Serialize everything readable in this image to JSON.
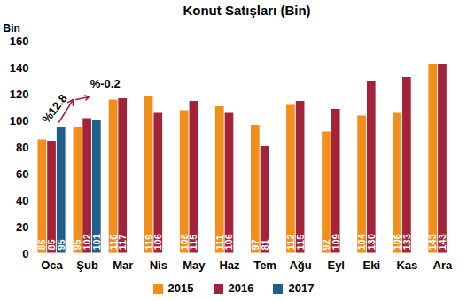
{
  "chart_data": {
    "type": "bar",
    "title": "Konut Satışları (Bin)",
    "y_label": "Bin",
    "categories": [
      "Oca",
      "Şub",
      "Mar",
      "Nis",
      "May",
      "Haz",
      "Tem",
      "Ağu",
      "Eyl",
      "Eki",
      "Kas",
      "Ara"
    ],
    "series": [
      {
        "name": "2015",
        "color": "#f28e1c",
        "values": [
          86,
          95,
          116,
          119,
          108,
          111,
          97,
          112,
          92,
          104,
          106,
          143
        ]
      },
      {
        "name": "2016",
        "color": "#a3233a",
        "values": [
          85,
          102,
          117,
          106,
          115,
          106,
          81,
          115,
          109,
          130,
          133,
          143
        ]
      },
      {
        "name": "2017",
        "color": "#1f5f8b",
        "values": [
          95,
          101,
          null,
          null,
          null,
          null,
          null,
          null,
          null,
          null,
          null,
          null
        ]
      }
    ],
    "ylim": [
      0,
      160
    ],
    "yticks": [
      0,
      20,
      40,
      60,
      80,
      100,
      120,
      140,
      160
    ],
    "grid": false,
    "data_labels": true,
    "legend": "bottom",
    "annotations": [
      {
        "text": "%12.8"
      },
      {
        "text": "%-0.2"
      }
    ]
  }
}
